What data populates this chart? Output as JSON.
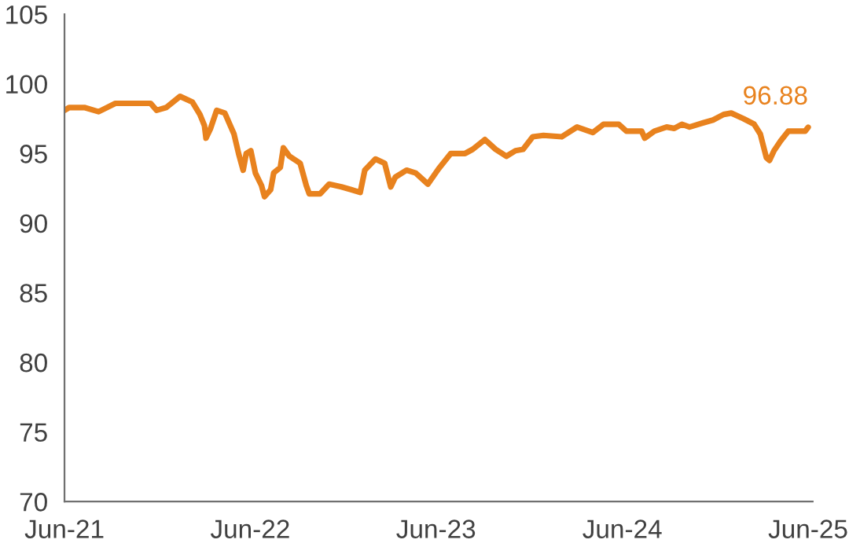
{
  "chart_data": {
    "type": "line",
    "x": [
      "2021-06-01",
      "2021-06-10",
      "2021-07-10",
      "2021-08-07",
      "2021-09-09",
      "2021-11-17",
      "2021-11-29",
      "2021-12-18",
      "2022-01-14",
      "2022-02-07",
      "2022-02-22",
      "2022-03-03",
      "2022-03-06",
      "2022-03-15",
      "2022-03-27",
      "2022-04-12",
      "2022-04-30",
      "2022-05-09",
      "2022-05-18",
      "2022-05-24",
      "2022-06-02",
      "2022-06-11",
      "2022-06-23",
      "2022-06-29",
      "2022-07-11",
      "2022-07-17",
      "2022-07-30",
      "2022-08-05",
      "2022-08-17",
      "2022-09-07",
      "2022-09-19",
      "2022-09-25",
      "2022-10-16",
      "2022-11-03",
      "2022-11-27",
      "2022-12-16",
      "2023-01-03",
      "2023-01-12",
      "2023-02-02",
      "2023-02-20",
      "2023-03-04",
      "2023-03-13",
      "2023-04-04",
      "2023-04-22",
      "2023-05-16",
      "2023-06-06",
      "2023-06-30",
      "2023-07-28",
      "2023-08-12",
      "2023-09-05",
      "2023-09-26",
      "2023-10-17",
      "2023-11-04",
      "2023-11-19",
      "2023-12-08",
      "2023-12-29",
      "2024-02-03",
      "2024-03-04",
      "2024-04-04",
      "2024-04-25",
      "2024-05-25",
      "2024-06-09",
      "2024-07-09",
      "2024-07-15",
      "2024-08-03",
      "2024-08-27",
      "2024-09-11",
      "2024-09-26",
      "2024-10-11",
      "2024-11-07",
      "2024-11-26",
      "2024-12-17",
      "2025-01-01",
      "2025-01-25",
      "2025-02-15",
      "2025-02-27",
      "2025-03-11",
      "2025-03-17",
      "2025-03-26",
      "2025-04-08",
      "2025-04-23",
      "2025-05-26",
      "2025-06-01"
    ],
    "series": [
      {
        "color": "#e8821e",
        "values": [
          98.1,
          98.3,
          98.3,
          98.0,
          98.6,
          98.6,
          98.1,
          98.3,
          99.1,
          98.7,
          97.8,
          97.0,
          96.1,
          96.8,
          98.1,
          97.9,
          96.4,
          95.0,
          93.8,
          95.0,
          95.2,
          93.6,
          92.7,
          91.9,
          92.4,
          93.6,
          94.0,
          95.4,
          94.8,
          94.3,
          92.7,
          92.1,
          92.1,
          92.8,
          92.6,
          92.4,
          92.2,
          93.8,
          94.6,
          94.3,
          92.6,
          93.3,
          93.8,
          93.6,
          92.8,
          93.9,
          95.0,
          95.0,
          95.3,
          96.0,
          95.3,
          94.8,
          95.2,
          95.3,
          96.2,
          96.3,
          96.2,
          96.9,
          96.5,
          97.1,
          97.1,
          96.6,
          96.6,
          96.1,
          96.6,
          96.9,
          96.8,
          97.1,
          96.9,
          97.2,
          97.4,
          97.8,
          97.9,
          97.5,
          97.1,
          96.4,
          94.7,
          94.5,
          95.2,
          95.9,
          96.6,
          96.6,
          96.88
        ]
      }
    ],
    "annotations": [
      {
        "text": "96.88",
        "x": "2025-06-01",
        "y": 96.88
      }
    ],
    "xlim": [
      "2021-06-01",
      "2025-06-10"
    ],
    "xticks": [
      {
        "value": "2021-06-01",
        "label": "Jun-21"
      },
      {
        "value": "2022-06-01",
        "label": "Jun-22"
      },
      {
        "value": "2023-06-01",
        "label": "Jun-23"
      },
      {
        "value": "2024-06-01",
        "label": "Jun-24"
      },
      {
        "value": "2025-06-01",
        "label": "Jun-25"
      }
    ],
    "ylim": [
      70,
      105
    ],
    "yticks": [
      70,
      75,
      80,
      85,
      90,
      95,
      100,
      105
    ],
    "grid": false,
    "legend": false,
    "marker": "none",
    "line_style": "solid"
  }
}
